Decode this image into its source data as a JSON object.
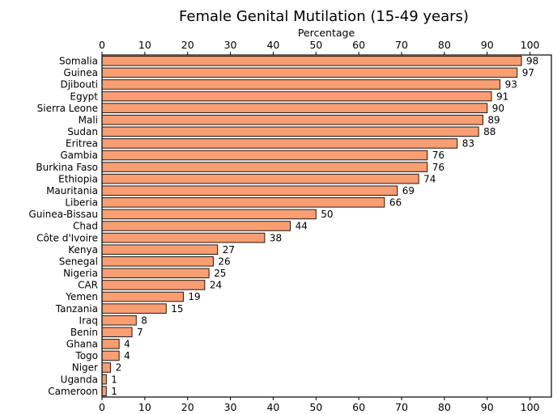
{
  "chart_data": {
    "type": "bar",
    "orientation": "horizontal",
    "title": "Female Genital Mutilation (15-49 years)",
    "xlabel": "Percentage",
    "categories": [
      "Somalia",
      "Guinea",
      "Djibouti",
      "Egypt",
      "Sierra Leone",
      "Mali",
      "Sudan",
      "Eritrea",
      "Gambia",
      "Burkina Faso",
      "Ethiopia",
      "Mauritania",
      "Liberia",
      "Guinea-Bissau",
      "Chad",
      "Côte d'Ivoire",
      "Kenya",
      "Senegal",
      "Nigeria",
      "CAR",
      "Yemen",
      "Tanzania",
      "Iraq",
      "Benin",
      "Ghana",
      "Togo",
      "Niger",
      "Uganda",
      "Cameroon"
    ],
    "values": [
      98,
      97,
      93,
      91,
      90,
      89,
      88,
      83,
      76,
      76,
      74,
      69,
      66,
      50,
      44,
      38,
      27,
      26,
      25,
      24,
      19,
      15,
      8,
      7,
      4,
      4,
      2,
      1,
      1
    ],
    "xlim": [
      0,
      105
    ],
    "xticks": [
      0,
      10,
      20,
      30,
      40,
      50,
      60,
      70,
      80,
      90,
      100
    ],
    "tick_positions": "top and bottom",
    "bar_color": "#f99e72",
    "bar_edge_color": "#1a1a1a",
    "value_labels_shown": true,
    "grid": false,
    "legend": false
  }
}
